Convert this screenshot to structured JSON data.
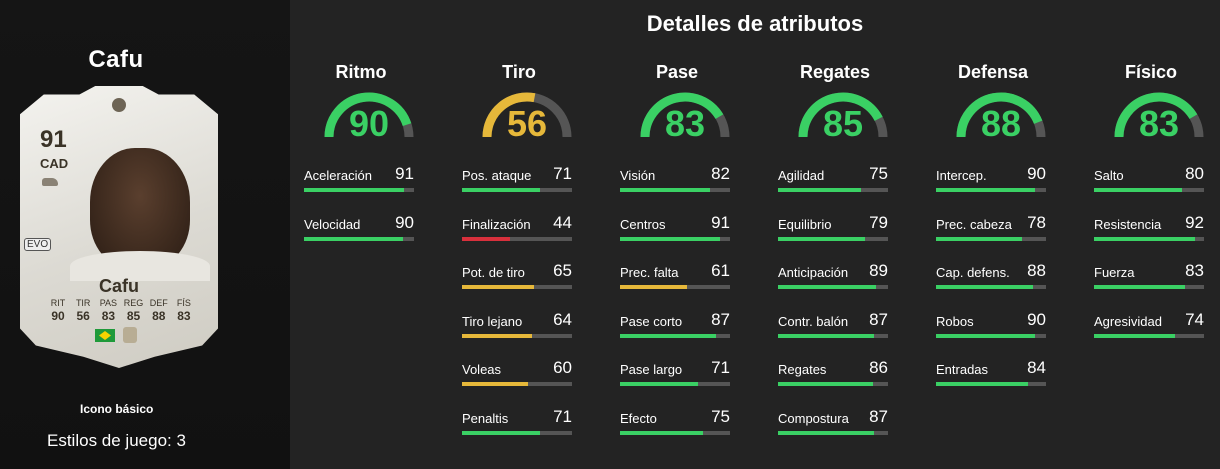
{
  "left": {
    "player_name": "Cafu",
    "card": {
      "rating": "91",
      "position": "CAD",
      "evo_badge": "EVO",
      "name": "Cafu",
      "stats": [
        {
          "label": "RIT",
          "value": "90"
        },
        {
          "label": "TIR",
          "value": "56"
        },
        {
          "label": "PAS",
          "value": "83"
        },
        {
          "label": "REG",
          "value": "85"
        },
        {
          "label": "DEF",
          "value": "88"
        },
        {
          "label": "FÍS",
          "value": "83"
        }
      ],
      "nation_icon": "brazil-flag-icon",
      "club_icon": "icons-club-badge-icon"
    },
    "card_type": "Icono básico",
    "play_styles": "Estilos de juego: 3"
  },
  "title": "Detalles de atributos",
  "colors": {
    "high": "#3ad064",
    "mid": "#e6b83a",
    "low": "#d8303c",
    "track": "#555555"
  },
  "categories": [
    {
      "name": "Ritmo",
      "value": "90",
      "color": "high",
      "attributes": [
        {
          "name": "Aceleración",
          "value": "91",
          "color": "high"
        },
        {
          "name": "Velocidad",
          "value": "90",
          "color": "high"
        }
      ]
    },
    {
      "name": "Tiro",
      "value": "56",
      "color": "mid",
      "attributes": [
        {
          "name": "Pos. ataque",
          "value": "71",
          "color": "high"
        },
        {
          "name": "Finalización",
          "value": "44",
          "color": "low"
        },
        {
          "name": "Pot. de tiro",
          "value": "65",
          "color": "mid"
        },
        {
          "name": "Tiro lejano",
          "value": "64",
          "color": "mid"
        },
        {
          "name": "Voleas",
          "value": "60",
          "color": "mid"
        },
        {
          "name": "Penaltis",
          "value": "71",
          "color": "high"
        }
      ]
    },
    {
      "name": "Pase",
      "value": "83",
      "color": "high",
      "attributes": [
        {
          "name": "Visión",
          "value": "82",
          "color": "high"
        },
        {
          "name": "Centros",
          "value": "91",
          "color": "high"
        },
        {
          "name": "Prec. falta",
          "value": "61",
          "color": "mid"
        },
        {
          "name": "Pase corto",
          "value": "87",
          "color": "high"
        },
        {
          "name": "Pase largo",
          "value": "71",
          "color": "high"
        },
        {
          "name": "Efecto",
          "value": "75",
          "color": "high"
        }
      ]
    },
    {
      "name": "Regates",
      "value": "85",
      "color": "high",
      "attributes": [
        {
          "name": "Agilidad",
          "value": "75",
          "color": "high"
        },
        {
          "name": "Equilibrio",
          "value": "79",
          "color": "high"
        },
        {
          "name": "Anticipación",
          "value": "89",
          "color": "high"
        },
        {
          "name": "Contr. balón",
          "value": "87",
          "color": "high"
        },
        {
          "name": "Regates",
          "value": "86",
          "color": "high"
        },
        {
          "name": "Compostura",
          "value": "87",
          "color": "high"
        }
      ]
    },
    {
      "name": "Defensa",
      "value": "88",
      "color": "high",
      "attributes": [
        {
          "name": "Intercep.",
          "value": "90",
          "color": "high"
        },
        {
          "name": "Prec. cabeza",
          "value": "78",
          "color": "high"
        },
        {
          "name": "Cap. defens.",
          "value": "88",
          "color": "high"
        },
        {
          "name": "Robos",
          "value": "90",
          "color": "high"
        },
        {
          "name": "Entradas",
          "value": "84",
          "color": "high"
        }
      ]
    },
    {
      "name": "Físico",
      "value": "83",
      "color": "high",
      "attributes": [
        {
          "name": "Salto",
          "value": "80",
          "color": "high"
        },
        {
          "name": "Resistencia",
          "value": "92",
          "color": "high"
        },
        {
          "name": "Fuerza",
          "value": "83",
          "color": "high"
        },
        {
          "name": "Agresividad",
          "value": "74",
          "color": "high"
        }
      ]
    }
  ]
}
